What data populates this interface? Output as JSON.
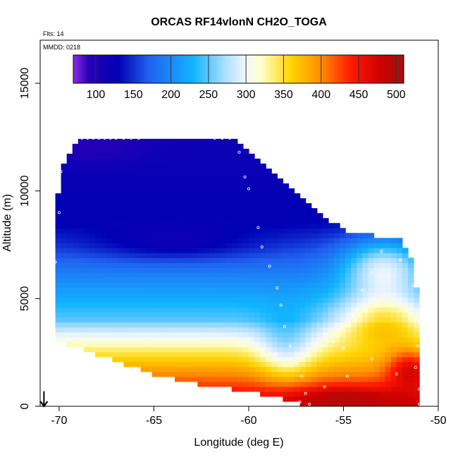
{
  "chart_data": {
    "type": "heatmap",
    "title": "ORCAS RF14vlonN CH2O_TOGA",
    "annotations": {
      "flights": "Flts: 14",
      "date": "MMDD: 0218"
    },
    "xlabel": "Longitude (deg E)",
    "ylabel": "Altitude (m)",
    "xlim": [
      -71,
      -50
    ],
    "ylim": [
      0,
      17000
    ],
    "x_ticks": [
      -70,
      -65,
      -60,
      -55,
      -50
    ],
    "x_tick_labels": [
      "-70",
      "-65",
      "-60",
      "-55",
      "-50"
    ],
    "y_ticks": [
      0,
      5000,
      10000,
      15000
    ],
    "y_tick_labels": [
      "0",
      "5000",
      "10000",
      "15000"
    ],
    "colorbar": {
      "range": [
        70,
        510
      ],
      "ticks": [
        100,
        150,
        200,
        250,
        300,
        350,
        400,
        450,
        500
      ],
      "tick_labels": [
        "100",
        "150",
        "200",
        "250",
        "300",
        "350",
        "400",
        "450",
        "500"
      ],
      "stops": [
        {
          "v": 70,
          "c": "#8b2be2"
        },
        {
          "v": 90,
          "c": "#2a00b8"
        },
        {
          "v": 130,
          "c": "#0000b4"
        },
        {
          "v": 170,
          "c": "#2060f0"
        },
        {
          "v": 230,
          "c": "#12b4ff"
        },
        {
          "v": 270,
          "c": "#a6dcff"
        },
        {
          "v": 300,
          "c": "#f2f7ff"
        },
        {
          "v": 320,
          "c": "#ffffcc"
        },
        {
          "v": 360,
          "c": "#ffd400"
        },
        {
          "v": 400,
          "c": "#ff8c00"
        },
        {
          "v": 440,
          "c": "#ff1a00"
        },
        {
          "v": 480,
          "c": "#cc0000"
        },
        {
          "v": 510,
          "c": "#a01010"
        }
      ]
    },
    "grid": {
      "lon_range": [
        -70.2,
        -51.0
      ],
      "alt_range": [
        0,
        12600
      ],
      "lon_step": 0.3,
      "alt_step": 230,
      "domain_bottom_left": [
        [
          -70.2,
          3000
        ],
        [
          -69.0,
          2700
        ],
        [
          -67.0,
          2100
        ],
        [
          -65.0,
          1500
        ],
        [
          -63.0,
          1100
        ],
        [
          -61.0,
          800
        ],
        [
          -59.0,
          500
        ],
        [
          -57.5,
          150
        ],
        [
          -56.5,
          0
        ],
        [
          -51.0,
          0
        ]
      ],
      "domain_top_left": [
        [
          -70.2,
          6700
        ],
        [
          -70.0,
          10800
        ],
        [
          -69.0,
          12500
        ],
        [
          -61.0,
          12500
        ],
        [
          -59.0,
          11000
        ],
        [
          -57.0,
          9500
        ],
        [
          -55.0,
          8200
        ],
        [
          -52.0,
          7700
        ],
        [
          -51.5,
          7200
        ],
        [
          -51.0,
          4700
        ]
      ]
    },
    "flight_track": [
      [
        -69.7,
        12450
      ],
      [
        -69.4,
        12450
      ],
      [
        -69.1,
        12450
      ],
      [
        -68.8,
        12450
      ],
      [
        -68.5,
        12450
      ],
      [
        -68.2,
        12450
      ],
      [
        -67.9,
        12450
      ],
      [
        -67.6,
        12450
      ],
      [
        -67.3,
        12450
      ],
      [
        -67.0,
        12450
      ],
      [
        -66.6,
        12450
      ],
      [
        -66.2,
        12450
      ],
      [
        -65.8,
        12450
      ],
      [
        -61.8,
        12450
      ],
      [
        -61.4,
        12450
      ],
      [
        -61.0,
        12450
      ],
      [
        -60.5,
        11800
      ],
      [
        -60.2,
        10650
      ],
      [
        -60.0,
        10100
      ],
      [
        -59.5,
        8300
      ],
      [
        -59.3,
        7400
      ],
      [
        -58.9,
        6500
      ],
      [
        -58.5,
        5500
      ],
      [
        -58.3,
        4700
      ],
      [
        -58.1,
        3700
      ],
      [
        -57.8,
        2800
      ],
      [
        -57.5,
        2000
      ],
      [
        -57.2,
        1400
      ],
      [
        -57.0,
        600
      ],
      [
        -57.3,
        200
      ],
      [
        -56.8,
        100
      ],
      [
        -70.2,
        6700
      ],
      [
        -70.0,
        9000
      ],
      [
        -69.9,
        10900
      ],
      [
        -70.3,
        4800
      ],
      [
        -55.5,
        3000
      ],
      [
        -54.5,
        4200
      ],
      [
        -53.5,
        6200
      ],
      [
        -53.0,
        7200
      ],
      [
        -52.0,
        6800
      ],
      [
        -51.3,
        5600
      ],
      [
        -51.5,
        4300
      ],
      [
        -51.1,
        2800
      ],
      [
        -51.2,
        1800
      ],
      [
        -51.0,
        800
      ],
      [
        -51.0,
        100
      ],
      [
        -52.2,
        1500
      ],
      [
        -53.5,
        2200
      ],
      [
        -54.8,
        1400
      ],
      [
        -56.0,
        900
      ],
      [
        -55.0,
        2700
      ],
      [
        -54.0,
        5400
      ]
    ],
    "profile_arrow": {
      "lon": -70.8,
      "alt_from": 700,
      "alt_to": 0
    }
  }
}
